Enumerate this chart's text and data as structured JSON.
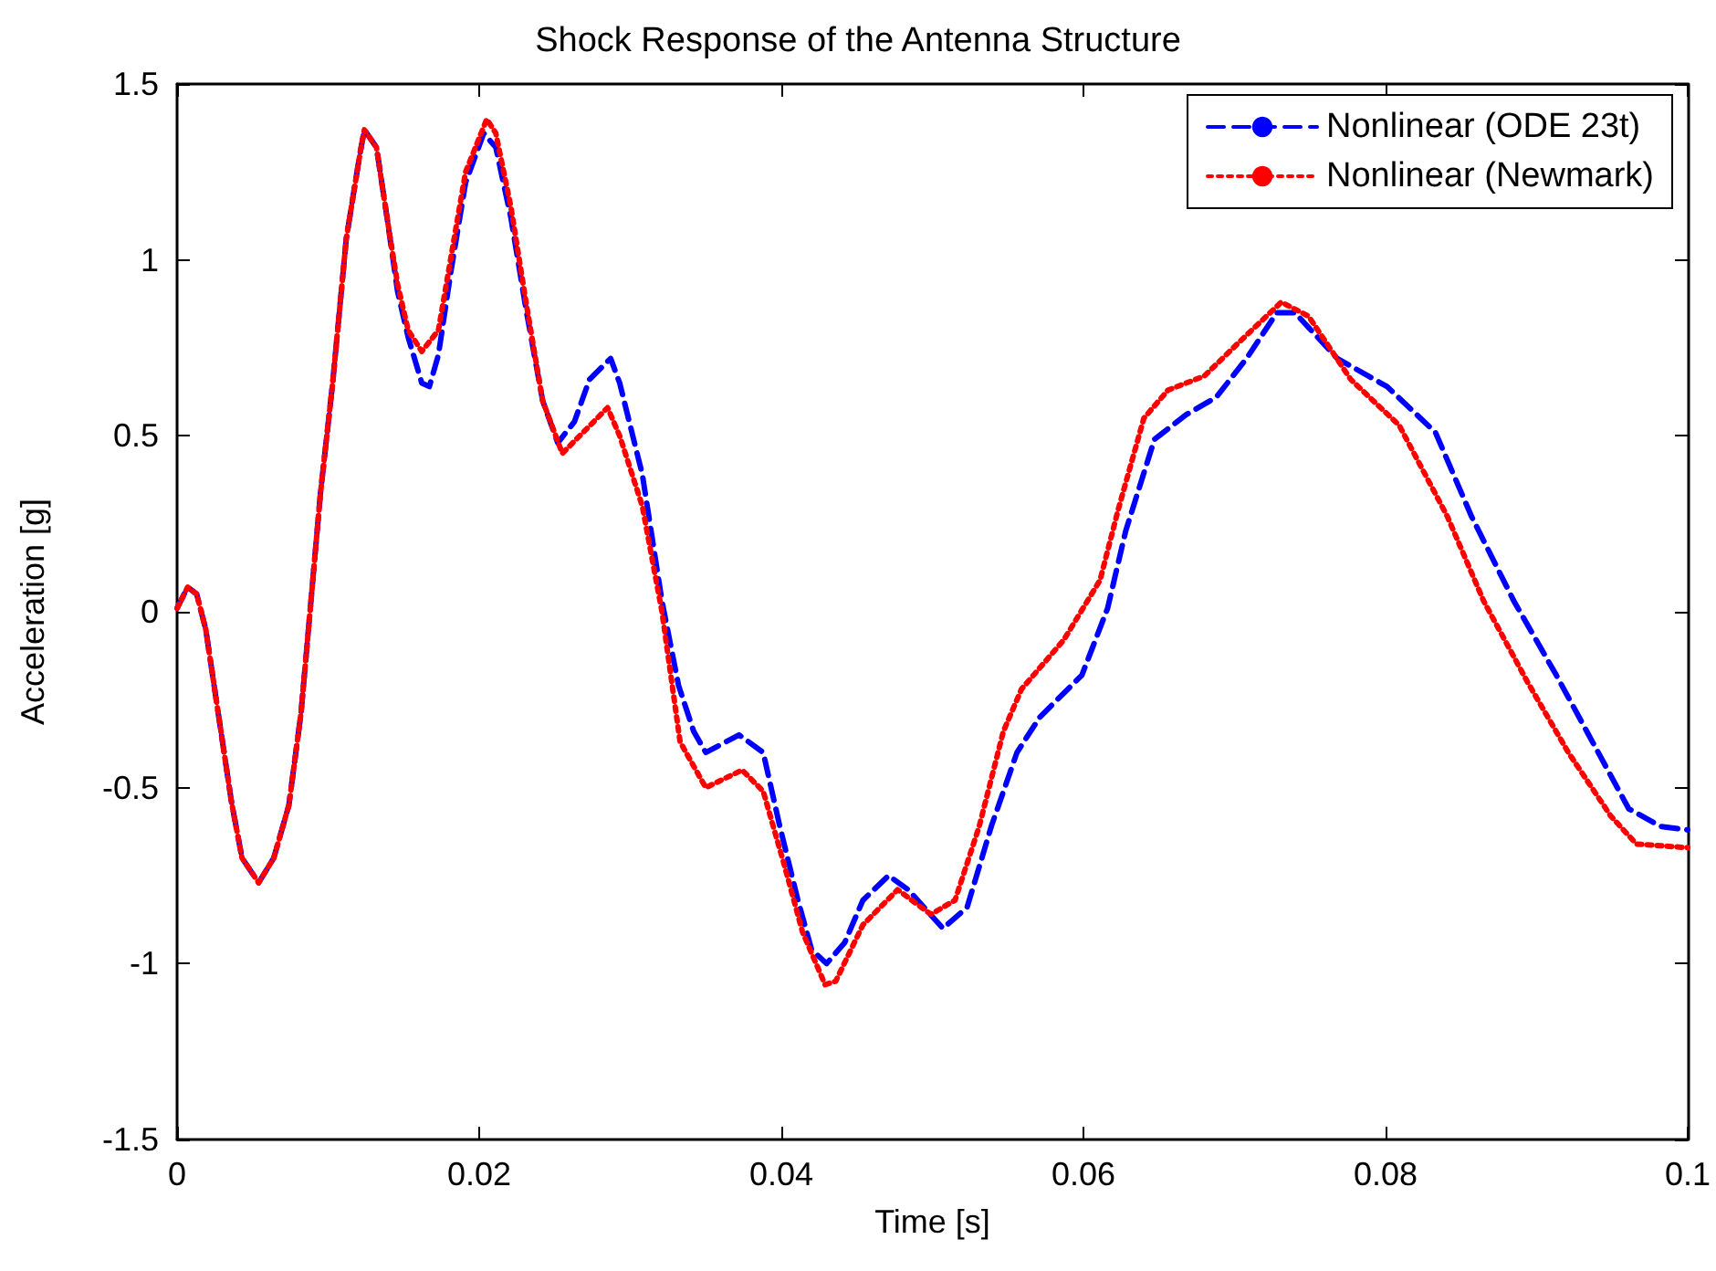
{
  "chart_data": {
    "type": "line",
    "title": "Shock Response of the Antenna Structure",
    "xlabel": "Time [s]",
    "ylabel": "Acceleration [g]",
    "xlim": [
      0,
      0.1
    ],
    "xticks": [
      0,
      0.02,
      0.04,
      0.06,
      0.08,
      0.1
    ],
    "ylim": [
      -1.5,
      1.5
    ],
    "yticks": [
      -1.5,
      -1,
      -0.5,
      0,
      0.5,
      1,
      1.5
    ],
    "grid": false,
    "legend": "top right",
    "marker": "none",
    "series": [
      {
        "name": "Nonlinear (ODE 23t)",
        "color": "#0000ff",
        "line_style": "dashed",
        "x": [
          0,
          0.0007,
          0.0013,
          0.0019,
          0.0028,
          0.0036,
          0.0043,
          0.0054,
          0.0064,
          0.0074,
          0.0082,
          0.0088,
          0.0095,
          0.0103,
          0.0112,
          0.0121,
          0.0124,
          0.0132,
          0.0139,
          0.0146,
          0.0153,
          0.0162,
          0.0167,
          0.0173,
          0.0181,
          0.0191,
          0.0203,
          0.0211,
          0.0221,
          0.0231,
          0.0242,
          0.0252,
          0.0263,
          0.0273,
          0.0287,
          0.0293,
          0.0308,
          0.0321,
          0.0332,
          0.0342,
          0.035,
          0.0372,
          0.0388,
          0.0399,
          0.0411,
          0.042,
          0.043,
          0.0442,
          0.0454,
          0.0471,
          0.0484,
          0.0507,
          0.0523,
          0.0539,
          0.0556,
          0.0571,
          0.0599,
          0.0616,
          0.0628,
          0.0647,
          0.0668,
          0.0688,
          0.0708,
          0.0728,
          0.074,
          0.0768,
          0.0801,
          0.0833,
          0.0857,
          0.0885,
          0.0913,
          0.0937,
          0.0961,
          0.0982,
          0.1
        ],
        "values": [
          0.01,
          0.07,
          0.05,
          -0.05,
          -0.31,
          -0.54,
          -0.7,
          -0.77,
          -0.7,
          -0.55,
          -0.29,
          0,
          0.34,
          0.65,
          1.06,
          1.3,
          1.37,
          1.32,
          1.12,
          0.91,
          0.78,
          0.65,
          0.64,
          0.73,
          0.96,
          1.22,
          1.36,
          1.32,
          1.12,
          0.86,
          0.6,
          0.48,
          0.54,
          0.66,
          0.72,
          0.65,
          0.39,
          0.03,
          -0.21,
          -0.34,
          -0.4,
          -0.35,
          -0.4,
          -0.61,
          -0.82,
          -0.96,
          -1,
          -0.94,
          -0.82,
          -0.75,
          -0.79,
          -0.9,
          -0.84,
          -0.61,
          -0.4,
          -0.3,
          -0.18,
          0.01,
          0.23,
          0.49,
          0.56,
          0.61,
          0.72,
          0.85,
          0.85,
          0.72,
          0.64,
          0.51,
          0.27,
          0.03,
          -0.18,
          -0.37,
          -0.56,
          -0.61,
          -0.62
        ]
      },
      {
        "name": "Nonlinear (Newmark)",
        "color": "#ff0000",
        "line_style": "dotted",
        "x": [
          0,
          0.0007,
          0.0013,
          0.0019,
          0.0028,
          0.0036,
          0.0043,
          0.0054,
          0.0064,
          0.0074,
          0.0082,
          0.0088,
          0.0095,
          0.0103,
          0.0112,
          0.0121,
          0.0124,
          0.0132,
          0.0139,
          0.0146,
          0.0153,
          0.0162,
          0.0173,
          0.0181,
          0.0191,
          0.0205,
          0.0211,
          0.0221,
          0.0231,
          0.0242,
          0.0255,
          0.0285,
          0.0293,
          0.0308,
          0.0321,
          0.0333,
          0.035,
          0.0374,
          0.0388,
          0.0402,
          0.0414,
          0.0429,
          0.0436,
          0.0454,
          0.0477,
          0.0499,
          0.0515,
          0.0531,
          0.0547,
          0.0559,
          0.0587,
          0.0611,
          0.0623,
          0.064,
          0.0656,
          0.068,
          0.0704,
          0.0731,
          0.0749,
          0.0777,
          0.0809,
          0.0841,
          0.0865,
          0.0894,
          0.0921,
          0.0949,
          0.0966,
          0.0998,
          0.1
        ],
        "values": [
          0.01,
          0.07,
          0.05,
          -0.05,
          -0.31,
          -0.54,
          -0.7,
          -0.77,
          -0.7,
          -0.55,
          -0.29,
          0,
          0.34,
          0.65,
          1.06,
          1.3,
          1.37,
          1.32,
          1.12,
          0.93,
          0.8,
          0.74,
          0.8,
          1.0,
          1.25,
          1.4,
          1.36,
          1.15,
          0.88,
          0.6,
          0.45,
          0.58,
          0.5,
          0.3,
          0,
          -0.37,
          -0.5,
          -0.45,
          -0.51,
          -0.72,
          -0.91,
          -1.06,
          -1.05,
          -0.89,
          -0.79,
          -0.86,
          -0.82,
          -0.61,
          -0.34,
          -0.22,
          -0.08,
          0.09,
          0.29,
          0.55,
          0.63,
          0.67,
          0.77,
          0.88,
          0.84,
          0.66,
          0.53,
          0.27,
          0.03,
          -0.2,
          -0.4,
          -0.58,
          -0.66,
          -0.67,
          -0.67
        ]
      }
    ]
  }
}
